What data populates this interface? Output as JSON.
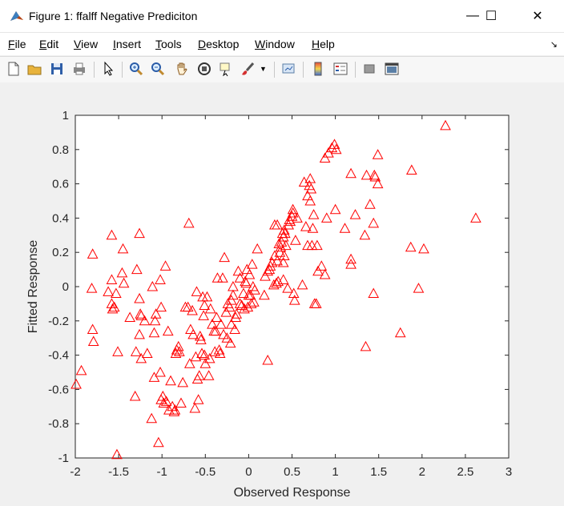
{
  "window": {
    "title": "Figure 1: ffalff Negative Prediciton",
    "minimize": "—",
    "maximize": "☐",
    "close": "✕"
  },
  "menu": [
    {
      "pre": "",
      "u": "F",
      "post": "ile"
    },
    {
      "pre": "",
      "u": "E",
      "post": "dit"
    },
    {
      "pre": "",
      "u": "V",
      "post": "iew"
    },
    {
      "pre": "",
      "u": "I",
      "post": "nsert"
    },
    {
      "pre": "",
      "u": "T",
      "post": "ools"
    },
    {
      "pre": "",
      "u": "D",
      "post": "esktop"
    },
    {
      "pre": "",
      "u": "W",
      "post": "indow"
    },
    {
      "pre": "",
      "u": "H",
      "post": "elp"
    }
  ],
  "toolbar_icons": [
    "new-figure-icon",
    "open-folder-icon",
    "save-icon",
    "print-icon",
    "pointer-icon",
    "zoom-in-icon",
    "zoom-out-icon",
    "pan-hand-icon",
    "rotate-3d-icon",
    "data-cursor-icon",
    "brush-icon",
    "link-plot-icon",
    "colorbar-icon",
    "legend-icon",
    "hide-plot-tools-icon",
    "show-plot-tools-icon"
  ],
  "colors": {
    "marker": "#ff0000",
    "axes_bg": "#ffffff",
    "figure_bg": "#f0f0f0"
  },
  "chart_data": {
    "type": "scatter",
    "xlabel": "Observed Response",
    "ylabel": "Fitted Response",
    "xlim": [
      -2,
      3
    ],
    "ylim": [
      -1,
      1
    ],
    "xticks": [
      -2,
      -1.5,
      -1,
      -0.5,
      0,
      0.5,
      1,
      1.5,
      2,
      2.5,
      3
    ],
    "yticks": [
      -1,
      -0.8,
      -0.6,
      -0.4,
      -0.2,
      0,
      0.2,
      0.4,
      0.6,
      0.8,
      1
    ],
    "xtick_labels": [
      "-2",
      "-1.5",
      "-1",
      "-0.5",
      "0",
      "0.5",
      "1",
      "1.5",
      "2",
      "2.5",
      "3"
    ],
    "ytick_labels": [
      "-1",
      "-0.8",
      "-0.6",
      "-0.4",
      "-0.2",
      "0",
      "0.2",
      "0.4",
      "0.6",
      "0.8",
      "1"
    ],
    "marker": "triangle",
    "grid": false,
    "points": [
      [
        2.27,
        0.94
      ],
      [
        2.62,
        0.4
      ],
      [
        2.02,
        0.22
      ],
      [
        1.96,
        -0.01
      ],
      [
        1.88,
        0.68
      ],
      [
        1.87,
        0.23
      ],
      [
        1.75,
        -0.27
      ],
      [
        1.49,
        0.77
      ],
      [
        1.49,
        0.6
      ],
      [
        1.46,
        0.64
      ],
      [
        1.45,
        0.65
      ],
      [
        1.44,
        0.37
      ],
      [
        1.44,
        -0.04
      ],
      [
        1.4,
        0.48
      ],
      [
        1.36,
        0.65
      ],
      [
        1.35,
        -0.35
      ],
      [
        1.34,
        0.3
      ],
      [
        1.23,
        0.42
      ],
      [
        1.18,
        0.66
      ],
      [
        1.18,
        0.16
      ],
      [
        1.18,
        0.13
      ],
      [
        1.11,
        0.34
      ],
      [
        1.01,
        0.8
      ],
      [
        0.99,
        0.83
      ],
      [
        1.0,
        0.45
      ],
      [
        0.96,
        0.81
      ],
      [
        0.92,
        0.78
      ],
      [
        0.9,
        0.4
      ],
      [
        0.88,
        0.75
      ],
      [
        0.88,
        0.07
      ],
      [
        0.84,
        0.12
      ],
      [
        0.8,
        0.09
      ],
      [
        0.79,
        0.24
      ],
      [
        0.76,
        -0.1
      ],
      [
        0.78,
        -0.1
      ],
      [
        0.75,
        0.42
      ],
      [
        0.74,
        0.34
      ],
      [
        0.73,
        0.24
      ],
      [
        0.72,
        0.57
      ],
      [
        0.71,
        0.5
      ],
      [
        0.71,
        0.63
      ],
      [
        0.7,
        0.59
      ],
      [
        0.68,
        0.53
      ],
      [
        0.68,
        0.24
      ],
      [
        0.66,
        0.35
      ],
      [
        0.64,
        0.61
      ],
      [
        0.62,
        0.01
      ],
      [
        0.56,
        0.4
      ],
      [
        0.54,
        0.27
      ],
      [
        0.53,
        -0.08
      ],
      [
        0.52,
        -0.04
      ],
      [
        0.51,
        0.43
      ],
      [
        0.51,
        0.45
      ],
      [
        0.5,
        0.41
      ],
      [
        0.48,
        0.38
      ],
      [
        0.47,
        0.39
      ],
      [
        0.46,
        0.36
      ],
      [
        0.45,
        -0.01
      ],
      [
        0.43,
        0.24
      ],
      [
        0.42,
        0.31
      ],
      [
        0.41,
        0.33
      ],
      [
        0.4,
        0.04
      ],
      [
        0.4,
        0.14
      ],
      [
        0.41,
        0.18
      ],
      [
        0.4,
        0.29
      ],
      [
        0.39,
        0.31
      ],
      [
        0.38,
        0.26
      ],
      [
        0.37,
        0.23
      ],
      [
        0.36,
        0.2
      ],
      [
        0.35,
        0.25
      ],
      [
        0.34,
        0.03
      ],
      [
        0.33,
        0.15
      ],
      [
        0.33,
        0.36
      ],
      [
        0.32,
        0.02
      ],
      [
        0.3,
        0.36
      ],
      [
        0.3,
        0.18
      ],
      [
        0.29,
        0.01
      ],
      [
        0.27,
        0.14
      ],
      [
        0.25,
        0.12
      ],
      [
        0.24,
        0.1
      ],
      [
        0.22,
        0.09
      ],
      [
        0.22,
        -0.43
      ],
      [
        0.19,
        0.06
      ],
      [
        0.18,
        -0.05
      ],
      [
        0.1,
        0.22
      ],
      [
        0.07,
        -0.02
      ],
      [
        0.06,
        -0.09
      ],
      [
        0.05,
        0.0
      ],
      [
        0.04,
        0.13
      ],
      [
        0.03,
        -0.1
      ],
      [
        0.02,
        -0.05
      ],
      [
        0.01,
        0.07
      ],
      [
        0.0,
        -0.05
      ],
      [
        -0.01,
        -0.12
      ],
      [
        -0.02,
        0.1
      ],
      [
        -0.03,
        0.02
      ],
      [
        -0.04,
        0.03
      ],
      [
        -0.05,
        -0.13
      ],
      [
        -0.06,
        -0.04
      ],
      [
        -0.08,
        -0.11
      ],
      [
        -0.1,
        0.05
      ],
      [
        -0.1,
        -0.1
      ],
      [
        -0.12,
        0.09
      ],
      [
        -0.14,
        -0.16
      ],
      [
        -0.15,
        -0.18
      ],
      [
        -0.16,
        -0.25
      ],
      [
        -0.18,
        0.0
      ],
      [
        -0.18,
        -0.05
      ],
      [
        -0.2,
        -0.08
      ],
      [
        -0.2,
        -0.22
      ],
      [
        -0.21,
        -0.33
      ],
      [
        -0.22,
        -0.12
      ],
      [
        -0.24,
        -0.1
      ],
      [
        -0.25,
        -0.3
      ],
      [
        -0.26,
        -0.15
      ],
      [
        -0.28,
        0.17
      ],
      [
        -0.29,
        -0.28
      ],
      [
        -0.3,
        0.05
      ],
      [
        -0.32,
        -0.22
      ],
      [
        -0.33,
        -0.39
      ],
      [
        -0.34,
        -0.37
      ],
      [
        -0.36,
        0.05
      ],
      [
        -0.37,
        -0.18
      ],
      [
        -0.38,
        -0.26
      ],
      [
        -0.39,
        -0.38
      ],
      [
        -0.4,
        -0.26
      ],
      [
        -0.42,
        -0.22
      ],
      [
        -0.44,
        -0.13
      ],
      [
        -0.45,
        -0.42
      ],
      [
        -0.46,
        -0.52
      ],
      [
        -0.48,
        -0.06
      ],
      [
        -0.5,
        -0.45
      ],
      [
        -0.51,
        -0.11
      ],
      [
        -0.51,
        -0.4
      ],
      [
        -0.52,
        -0.17
      ],
      [
        -0.53,
        -0.06
      ],
      [
        -0.54,
        -0.39
      ],
      [
        -0.55,
        -0.31
      ],
      [
        -0.56,
        -0.29
      ],
      [
        -0.57,
        -0.52
      ],
      [
        -0.58,
        -0.66
      ],
      [
        -0.59,
        -0.54
      ],
      [
        -0.6,
        -0.03
      ],
      [
        -0.61,
        -0.41
      ],
      [
        -0.62,
        -0.71
      ],
      [
        -0.64,
        -0.28
      ],
      [
        -0.65,
        -0.14
      ],
      [
        -0.67,
        -0.25
      ],
      [
        -0.68,
        -0.45
      ],
      [
        -0.69,
        0.37
      ],
      [
        -0.7,
        -0.12
      ],
      [
        -0.73,
        -0.12
      ],
      [
        -0.76,
        -0.56
      ],
      [
        -0.78,
        -0.68
      ],
      [
        -0.8,
        -0.38
      ],
      [
        -0.81,
        -0.35
      ],
      [
        -0.83,
        -0.37
      ],
      [
        -0.84,
        -0.39
      ],
      [
        -0.85,
        -0.72
      ],
      [
        -0.86,
        -0.73
      ],
      [
        -0.88,
        -0.7
      ],
      [
        -0.9,
        -0.55
      ],
      [
        -0.92,
        -0.72
      ],
      [
        -0.93,
        -0.26
      ],
      [
        -0.95,
        -0.67
      ],
      [
        -0.96,
        0.12
      ],
      [
        -0.98,
        -0.68
      ],
      [
        -0.99,
        -0.64
      ],
      [
        -1.01,
        -0.12
      ],
      [
        -1.01,
        -0.66
      ],
      [
        -1.02,
        -0.5
      ],
      [
        -1.02,
        0.04
      ],
      [
        -1.04,
        -0.91
      ],
      [
        -1.07,
        -0.16
      ],
      [
        -1.08,
        -0.2
      ],
      [
        -1.09,
        -0.53
      ],
      [
        -1.09,
        -0.27
      ],
      [
        -1.11,
        0.0
      ],
      [
        -1.12,
        -0.77
      ],
      [
        -1.17,
        -0.39
      ],
      [
        -1.2,
        -0.2
      ],
      [
        -1.24,
        -0.17
      ],
      [
        -1.24,
        -0.42
      ],
      [
        -1.25,
        -0.16
      ],
      [
        -1.26,
        -0.28
      ],
      [
        -1.26,
        -0.07
      ],
      [
        -1.26,
        0.31
      ],
      [
        -1.29,
        0.1
      ],
      [
        -1.3,
        -0.38
      ],
      [
        -1.31,
        -0.64
      ],
      [
        -1.37,
        -0.18
      ],
      [
        -1.44,
        0.02
      ],
      [
        -1.45,
        0.22
      ],
      [
        -1.46,
        0.08
      ],
      [
        -1.51,
        -0.38
      ],
      [
        -1.52,
        -0.98
      ],
      [
        -1.53,
        -0.04
      ],
      [
        -1.55,
        -0.12
      ],
      [
        -1.57,
        -0.13
      ],
      [
        -1.58,
        0.3
      ],
      [
        -1.58,
        -0.1
      ],
      [
        -1.58,
        0.04
      ],
      [
        -1.62,
        -0.03
      ],
      [
        -1.79,
        -0.32
      ],
      [
        -1.8,
        0.19
      ],
      [
        -1.8,
        -0.25
      ],
      [
        -1.81,
        -0.01
      ],
      [
        -1.93,
        -0.49
      ],
      [
        -1.99,
        -0.57
      ]
    ]
  }
}
